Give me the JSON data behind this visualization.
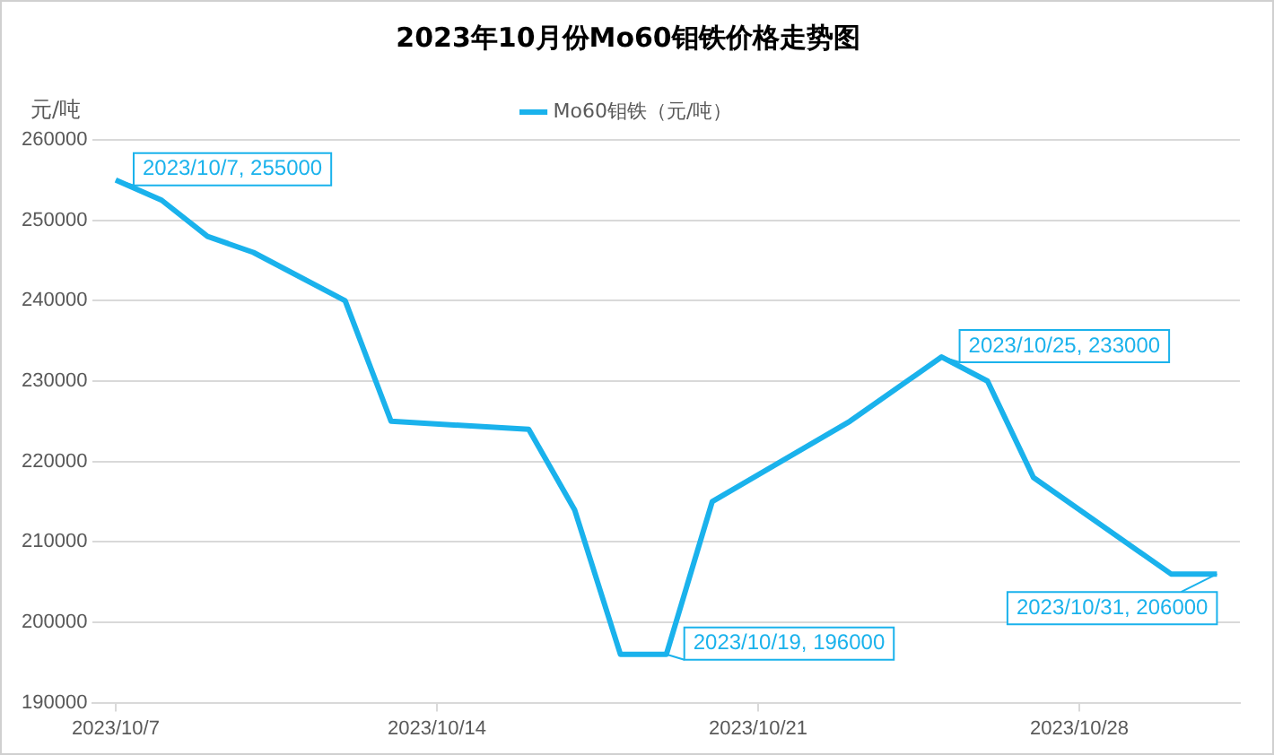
{
  "chart_data": {
    "type": "line",
    "title": "2023年10月份Mo60钼铁价格走势图",
    "ylabel": "元/吨",
    "x": [
      "2023-10-07",
      "2023-10-08",
      "2023-10-09",
      "2023-10-10",
      "2023-10-12",
      "2023-10-13",
      "2023-10-16",
      "2023-10-17",
      "2023-10-18",
      "2023-10-19",
      "2023-10-20",
      "2023-10-23",
      "2023-10-25",
      "2023-10-26",
      "2023-10-27",
      "2023-10-30",
      "2023-10-31"
    ],
    "series": [
      {
        "name": "Mo60钼铁（元/吨）",
        "color": "#1ab2ec",
        "values": [
          255000,
          252500,
          248000,
          246000,
          240000,
          225000,
          224000,
          214000,
          196000,
          196000,
          215000,
          225000,
          233000,
          230000,
          218000,
          206000,
          206000
        ]
      }
    ],
    "xlim": [
      "2023-10-06T12:00",
      "2023-10-31T12:00"
    ],
    "xticks": [
      {
        "value": "2023-10-07",
        "label": "2023/10/7"
      },
      {
        "value": "2023-10-14",
        "label": "2023/10/14"
      },
      {
        "value": "2023-10-21",
        "label": "2023/10/21"
      },
      {
        "value": "2023-10-28",
        "label": "2023/10/28"
      }
    ],
    "ylim": [
      190000,
      260000
    ],
    "yticks": [
      190000,
      200000,
      210000,
      220000,
      230000,
      240000,
      250000,
      260000
    ],
    "grid": "y",
    "legend": "top",
    "marker": "none",
    "line_style": "solid",
    "annotations": [
      {
        "text": "2023/10/7, 255000",
        "x": "2023-10-07",
        "y": 255000
      },
      {
        "text": "2023/10/19, 196000",
        "x": "2023-10-19",
        "y": 196000
      },
      {
        "text": "2023/10/25, 233000",
        "x": "2023-10-25",
        "y": 233000
      },
      {
        "text": "2023/10/31, 206000",
        "x": "2023-10-31",
        "y": 206000
      }
    ]
  }
}
